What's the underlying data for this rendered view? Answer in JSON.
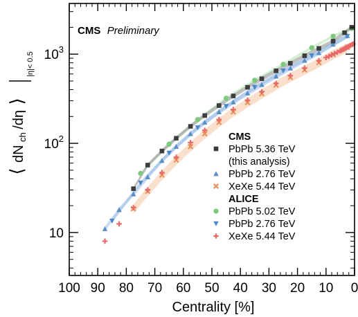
{
  "chart_data": {
    "type": "scatter",
    "title": "",
    "experiment_tag": {
      "bold": "CMS",
      "italic": "Preliminary"
    },
    "xlabel": "Centrality [%]",
    "ylabel_parts": {
      "open": "⟨",
      "d1": "dN",
      "sub": "ch",
      "rest": "/dη",
      "close": "⟩",
      "range": "|η|< 0.5"
    },
    "xlim": [
      100,
      0
    ],
    "ylim": [
      3.3,
      3700
    ],
    "y_scale": "log",
    "x_ticks": [
      100,
      90,
      80,
      70,
      60,
      50,
      40,
      30,
      20,
      10,
      0
    ],
    "y_tick_labels": [
      {
        "value": 10,
        "base": "10",
        "exp": ""
      },
      {
        "value": 100,
        "base": "10",
        "exp": "2"
      },
      {
        "value": 1000,
        "base": "10",
        "exp": "3"
      }
    ],
    "grid": false,
    "legend_position": "bottom-right",
    "legend_groups": [
      {
        "header": "CMS",
        "entries": [
          {
            "series": 0,
            "lines": [
              "PbPb 5.36 TeV",
              "(this analysis)"
            ]
          },
          {
            "series": 1,
            "lines": [
              "PbPb 2.76 TeV"
            ]
          },
          {
            "series": 2,
            "lines": [
              "XeXe 5.44 TeV"
            ]
          }
        ]
      },
      {
        "header": "ALICE",
        "entries": [
          {
            "series": 3,
            "lines": [
              "PbPb 5.02 TeV"
            ]
          },
          {
            "series": 4,
            "lines": [
              "PbPb 2.76 TeV"
            ]
          },
          {
            "series": 5,
            "lines": [
              "XeXe 5.44 TeV"
            ]
          }
        ]
      }
    ],
    "series": [
      {
        "name": "CMS PbPb 5.36 TeV (this analysis)",
        "marker": "square",
        "color": "#3d3d3d",
        "band_color": "#8c8c8c",
        "x": [
          1,
          3.5,
          7.5,
          12.5,
          17.5,
          22.5,
          27.5,
          32.5,
          37.5,
          42.5,
          47.5,
          52.5,
          57.5,
          62.5,
          67.5,
          72.5,
          77.5
        ],
        "y": [
          2000,
          1740,
          1400,
          1160,
          960,
          790,
          650,
          530,
          425,
          340,
          265,
          205,
          155,
          114,
          82,
          57,
          31
        ],
        "band_rel": 0.05
      },
      {
        "name": "CMS PbPb 2.76 TeV",
        "marker": "triangle-up",
        "color": "#5a8ec4",
        "band_color": "#9dbfe6",
        "x": [
          2.5,
          7.5,
          12.5,
          17.5,
          22.5,
          27.5,
          32.5,
          37.5,
          42.5,
          47.5,
          52.5,
          57.5,
          62.5,
          67.5,
          72.5,
          77.5,
          82.5,
          87.5
        ],
        "y": [
          1610,
          1290,
          1035,
          850,
          695,
          565,
          455,
          365,
          290,
          225,
          172,
          128,
          92,
          64,
          42,
          27,
          18,
          11
        ],
        "band_rel": 0.06
      },
      {
        "name": "CMS XeXe 5.44 TeV",
        "marker": "x",
        "color": "#e8935a",
        "band_color": "#f6c6a2",
        "x": [
          2.5,
          7.5,
          12.5,
          17.5,
          22.5,
          27.5,
          32.5,
          37.5,
          42.5,
          47.5,
          52.5,
          57.5,
          62.5,
          67.5,
          72.5,
          77.5
        ],
        "y": [
          1190,
          990,
          805,
          665,
          550,
          450,
          360,
          287,
          225,
          172,
          128,
          92,
          65,
          44,
          29,
          18.5
        ],
        "band_rel": 0.12
      },
      {
        "name": "ALICE PbPb 5.02 TeV",
        "marker": "circle",
        "color": "#7fc97f",
        "band_color": "#b3e3b3",
        "x": [
          1,
          7.5,
          15,
          25,
          35,
          45,
          55,
          65,
          75
        ],
        "y": [
          1940,
          1590,
          1180,
          770,
          510,
          320,
          185,
          98,
          46
        ],
        "band_rel": 0.04
      },
      {
        "name": "ALICE PbPb 2.76 TeV",
        "marker": "triangle-down",
        "color": "#4a86c8",
        "band_color": "#9dbfe6",
        "x": [
          2.5,
          7.5,
          15,
          25,
          35,
          45,
          55,
          65,
          75,
          85
        ],
        "y": [
          1590,
          1290,
          960,
          650,
          425,
          260,
          150,
          78,
          36,
          13.5
        ],
        "band_rel": 0.05
      },
      {
        "name": "ALICE XeXe 5.44 TeV",
        "marker": "plus",
        "color": "#e66a6a",
        "band_color": "#f5a8a8",
        "x": [
          0.5,
          1,
          1.5,
          2,
          2.5,
          3,
          3.5,
          4,
          4.5,
          5,
          6,
          7,
          8,
          9,
          10,
          12.5,
          17.5,
          22.5,
          27.5,
          32.5,
          37.5,
          42.5,
          47.5,
          52.5,
          57.5,
          62.5,
          67.5,
          72.5,
          77.5,
          82.5,
          87.5
        ],
        "y": [
          1300,
          1275,
          1250,
          1225,
          1200,
          1175,
          1150,
          1130,
          1110,
          1090,
          1050,
          1015,
          980,
          945,
          915,
          845,
          700,
          575,
          470,
          380,
          305,
          240,
          185,
          140,
          102,
          70,
          47,
          30,
          19,
          12.5,
          8
        ],
        "band_rel": 0.05
      }
    ]
  }
}
